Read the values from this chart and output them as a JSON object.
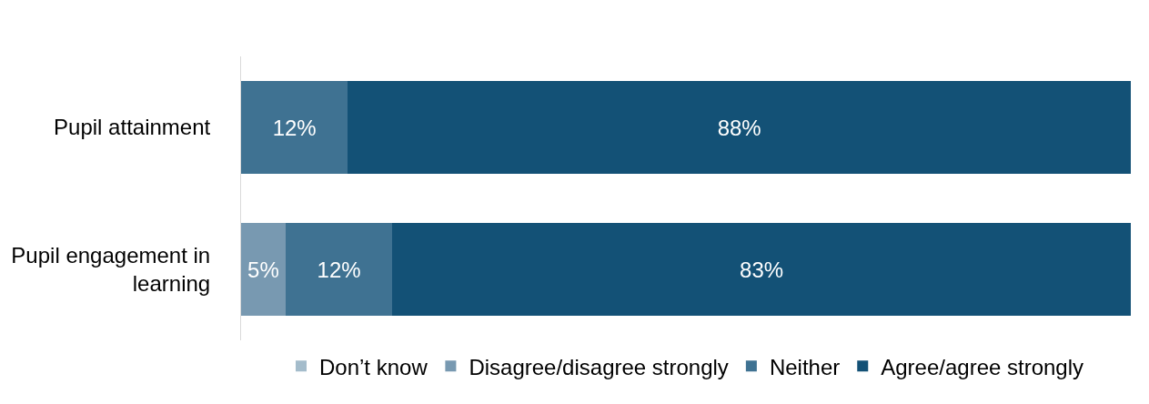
{
  "chart_data": {
    "type": "bar",
    "orientation": "horizontal",
    "stacked": true,
    "categories": [
      "Pupil attainment",
      "Pupil engagement in learning"
    ],
    "series": [
      {
        "name": "Don’t know",
        "color": "#a4bccb",
        "values": [
          0,
          0
        ],
        "value_labels": [
          null,
          null
        ]
      },
      {
        "name": "Disagree/disagree strongly",
        "color": "#7899b1",
        "values": [
          0,
          5
        ],
        "value_labels": [
          null,
          "5%"
        ]
      },
      {
        "name": "Neither",
        "color": "#3f7292",
        "values": [
          12,
          12
        ],
        "value_labels": [
          "12%",
          "12%"
        ]
      },
      {
        "name": "Agree/agree strongly",
        "color": "#135176",
        "values": [
          88,
          83
        ],
        "value_labels": [
          "88%",
          "83%"
        ]
      }
    ],
    "xlim": [
      0,
      100
    ],
    "tick_labels": "y",
    "legend": "bottom"
  }
}
